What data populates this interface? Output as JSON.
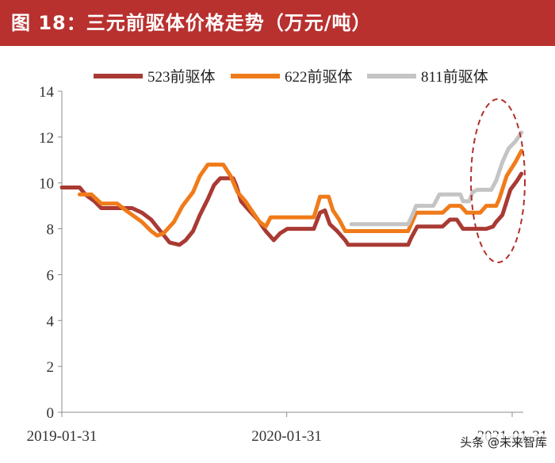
{
  "header": {
    "title": "图 18：三元前驱体价格走势（万元/吨）"
  },
  "watermark": {
    "text": "头条 @未来智库"
  },
  "colors": {
    "banner": "#b8312f",
    "series_523": "#a93a33",
    "series_622": "#f07b1a",
    "series_811": "#c4c4c4",
    "highlight_ellipse": "#b0302c"
  },
  "chart_data": {
    "type": "line",
    "title": "",
    "xlabel": "",
    "ylabel": "",
    "ylim": [
      0,
      14
    ],
    "yticks": [
      0,
      2,
      4,
      6,
      8,
      10,
      12,
      14
    ],
    "xlim": [
      "2019-01-31",
      "2021-02-18"
    ],
    "xticks": [
      "2019-01-31",
      "2020-01-31",
      "2021-01-31"
    ],
    "xtick_labels": [
      "2019-01-31",
      "2020-01-31",
      "2021-01-31"
    ],
    "grid": false,
    "legend_position": "top",
    "annotation": "dashed ellipse highlighting the early-2021 price surge",
    "series": [
      {
        "name": "523前驱体",
        "color": "#a93a33",
        "points": [
          [
            "2019-01-31",
            9.8
          ],
          [
            "2019-03-01",
            9.8
          ],
          [
            "2019-03-10",
            9.5
          ],
          [
            "2019-03-25",
            9.2
          ],
          [
            "2019-04-05",
            8.9
          ],
          [
            "2019-05-25",
            8.9
          ],
          [
            "2019-06-10",
            8.7
          ],
          [
            "2019-06-25",
            8.4
          ],
          [
            "2019-07-10",
            7.9
          ],
          [
            "2019-07-25",
            7.4
          ],
          [
            "2019-08-10",
            7.3
          ],
          [
            "2019-08-20",
            7.5
          ],
          [
            "2019-09-01",
            7.9
          ],
          [
            "2019-09-12",
            8.6
          ],
          [
            "2019-09-25",
            9.3
          ],
          [
            "2019-10-05",
            9.9
          ],
          [
            "2019-10-15",
            10.2
          ],
          [
            "2019-11-05",
            10.2
          ],
          [
            "2019-11-10",
            9.9
          ],
          [
            "2019-11-18",
            9.2
          ],
          [
            "2019-12-01",
            8.8
          ],
          [
            "2019-12-15",
            8.4
          ],
          [
            "2019-12-28",
            7.9
          ],
          [
            "2020-01-10",
            7.5
          ],
          [
            "2020-01-20",
            7.8
          ],
          [
            "2020-02-01",
            8.0
          ],
          [
            "2020-03-15",
            8.0
          ],
          [
            "2020-03-25",
            8.7
          ],
          [
            "2020-04-02",
            8.8
          ],
          [
            "2020-04-10",
            8.2
          ],
          [
            "2020-04-22",
            7.9
          ],
          [
            "2020-05-05",
            7.5
          ],
          [
            "2020-05-10",
            7.3
          ],
          [
            "2020-08-15",
            7.3
          ],
          [
            "2020-08-20",
            7.6
          ],
          [
            "2020-08-30",
            8.1
          ],
          [
            "2020-10-10",
            8.1
          ],
          [
            "2020-10-22",
            8.4
          ],
          [
            "2020-11-02",
            8.4
          ],
          [
            "2020-11-12",
            8.0
          ],
          [
            "2020-12-20",
            8.0
          ],
          [
            "2020-12-31",
            8.1
          ],
          [
            "2021-01-05",
            8.3
          ],
          [
            "2021-01-15",
            8.6
          ],
          [
            "2021-01-28",
            9.7
          ],
          [
            "2021-02-08",
            10.1
          ],
          [
            "2021-02-15",
            10.4
          ]
        ]
      },
      {
        "name": "622前驱体",
        "color": "#f07b1a",
        "points": [
          [
            "2019-03-01",
            9.5
          ],
          [
            "2019-03-20",
            9.5
          ],
          [
            "2019-04-05",
            9.1
          ],
          [
            "2019-05-01",
            9.1
          ],
          [
            "2019-05-15",
            8.8
          ],
          [
            "2019-06-10",
            8.3
          ],
          [
            "2019-06-25",
            7.9
          ],
          [
            "2019-07-05",
            7.7
          ],
          [
            "2019-07-15",
            7.8
          ],
          [
            "2019-08-01",
            8.3
          ],
          [
            "2019-08-15",
            9.0
          ],
          [
            "2019-09-01",
            9.6
          ],
          [
            "2019-09-12",
            10.3
          ],
          [
            "2019-09-25",
            10.8
          ],
          [
            "2019-10-20",
            10.8
          ],
          [
            "2019-11-01",
            10.3
          ],
          [
            "2019-11-12",
            9.6
          ],
          [
            "2019-11-25",
            9.2
          ],
          [
            "2019-12-05",
            8.8
          ],
          [
            "2019-12-18",
            8.3
          ],
          [
            "2019-12-28",
            8.1
          ],
          [
            "2020-01-05",
            8.5
          ],
          [
            "2020-03-15",
            8.5
          ],
          [
            "2020-03-25",
            9.4
          ],
          [
            "2020-04-08",
            9.4
          ],
          [
            "2020-04-15",
            8.8
          ],
          [
            "2020-04-25",
            8.4
          ],
          [
            "2020-05-05",
            7.9
          ],
          [
            "2020-08-15",
            7.9
          ],
          [
            "2020-08-20",
            8.2
          ],
          [
            "2020-08-28",
            8.7
          ],
          [
            "2020-10-10",
            8.7
          ],
          [
            "2020-10-22",
            9.0
          ],
          [
            "2020-11-08",
            9.0
          ],
          [
            "2020-11-18",
            8.7
          ],
          [
            "2020-12-10",
            8.7
          ],
          [
            "2020-12-20",
            9.0
          ],
          [
            "2021-01-05",
            9.0
          ],
          [
            "2021-01-10",
            9.3
          ],
          [
            "2021-01-22",
            10.3
          ],
          [
            "2021-02-05",
            10.9
          ],
          [
            "2021-02-15",
            11.4
          ]
        ]
      },
      {
        "name": "811前驱体",
        "color": "#c4c4c4",
        "points": [
          [
            "2020-05-15",
            8.2
          ],
          [
            "2020-08-15",
            8.2
          ],
          [
            "2020-08-22",
            8.6
          ],
          [
            "2020-08-28",
            9.0
          ],
          [
            "2020-09-25",
            9.0
          ],
          [
            "2020-10-05",
            9.5
          ],
          [
            "2020-11-08",
            9.5
          ],
          [
            "2020-11-12",
            9.2
          ],
          [
            "2020-11-22",
            9.2
          ],
          [
            "2020-11-28",
            9.6
          ],
          [
            "2020-12-05",
            9.7
          ],
          [
            "2020-12-28",
            9.7
          ],
          [
            "2021-01-05",
            10.1
          ],
          [
            "2021-01-15",
            10.9
          ],
          [
            "2021-01-25",
            11.5
          ],
          [
            "2021-02-05",
            11.8
          ],
          [
            "2021-02-15",
            12.2
          ]
        ]
      }
    ]
  }
}
